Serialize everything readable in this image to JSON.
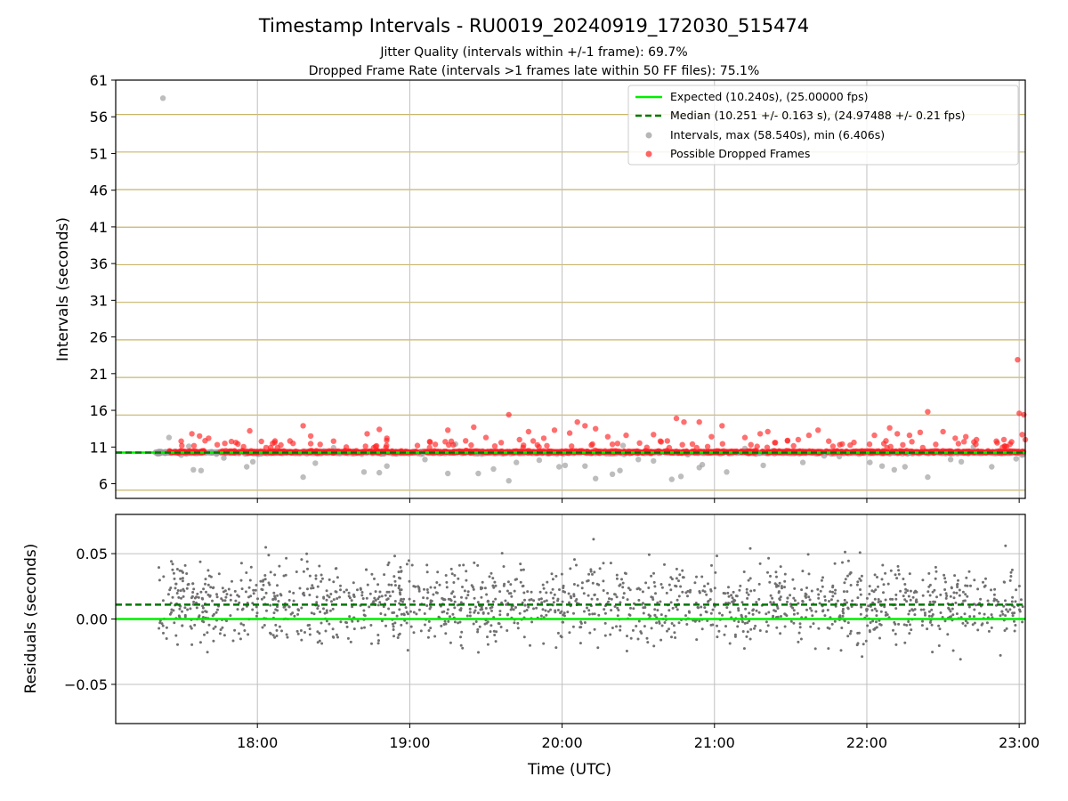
{
  "figure": {
    "title": "Timestamp Intervals - RU0019_20240919_172030_515474",
    "subtitle_1": "Jitter Quality (intervals within +/-1 frame): 69.7%",
    "subtitle_2": "Dropped Frame Rate (intervals >1 frames late within 50 FF files): 75.1%"
  },
  "colors": {
    "expected": "#00ee00",
    "median": "#007700",
    "intervals": "#999999",
    "dropped": "#ff2222",
    "residuals": "#707070",
    "frame_lines": "#c8b56a",
    "grid": "#c0c0c0"
  },
  "chart_data": [
    {
      "type": "scatter",
      "panel": "top",
      "ylabel": "Intervals (seconds)",
      "xlabel": "",
      "x_unit": "hours UTC",
      "xlim": [
        17.07,
        23.04
      ],
      "ylim": [
        4,
        61
      ],
      "y_ticks": [
        6,
        11,
        16,
        21,
        26,
        31,
        36,
        41,
        46,
        51,
        56,
        61
      ],
      "x_ticks": [
        18,
        19,
        20,
        21,
        22,
        23
      ],
      "x_tick_labels": [
        "18:00",
        "19:00",
        "20:00",
        "21:00",
        "22:00",
        "23:00"
      ],
      "grid": true,
      "frame_interval_lines": true,
      "legend_position": "top-right",
      "expected_interval": 10.24,
      "median_interval": 10.251,
      "legend": {
        "expected": "Expected (10.240s), (25.00000 fps)",
        "median": "Median (10.251 +/- 0.163 s), (24.97488 +/- 0.21 fps)",
        "intervals": "Intervals, max (58.540s), min (6.406s)",
        "dropped": "Possible Dropped Frames"
      },
      "series": [
        {
          "name": "Intervals, max (58.540s), min (6.406s)",
          "points": [
            [
              17.38,
              58.54
            ],
            [
              17.42,
              12.3
            ],
            [
              17.5,
              9.9
            ],
            [
              17.58,
              7.9
            ],
            [
              17.63,
              7.8
            ],
            [
              17.78,
              9.5
            ],
            [
              17.93,
              8.3
            ],
            [
              17.97,
              9.0
            ],
            [
              18.3,
              6.9
            ],
            [
              18.38,
              8.8
            ],
            [
              18.7,
              7.6
            ],
            [
              18.8,
              7.5
            ],
            [
              18.85,
              8.4
            ],
            [
              19.1,
              9.3
            ],
            [
              19.25,
              7.4
            ],
            [
              19.45,
              7.4
            ],
            [
              19.55,
              8.0
            ],
            [
              19.65,
              6.4
            ],
            [
              19.7,
              8.9
            ],
            [
              19.85,
              9.2
            ],
            [
              19.98,
              8.3
            ],
            [
              20.02,
              8.5
            ],
            [
              20.15,
              8.4
            ],
            [
              20.22,
              6.7
            ],
            [
              20.33,
              7.3
            ],
            [
              20.38,
              7.8
            ],
            [
              20.5,
              9.3
            ],
            [
              20.6,
              9.1
            ],
            [
              20.72,
              6.6
            ],
            [
              20.78,
              7.0
            ],
            [
              20.9,
              8.2
            ],
            [
              20.92,
              8.6
            ],
            [
              21.08,
              7.6
            ],
            [
              21.32,
              8.5
            ],
            [
              21.58,
              8.9
            ],
            [
              21.72,
              9.8
            ],
            [
              21.82,
              9.7
            ],
            [
              22.02,
              8.9
            ],
            [
              22.1,
              8.4
            ],
            [
              22.18,
              7.9
            ],
            [
              22.25,
              8.3
            ],
            [
              22.4,
              6.9
            ],
            [
              22.55,
              9.3
            ],
            [
              22.62,
              9.0
            ],
            [
              22.82,
              8.3
            ],
            [
              22.98,
              9.4
            ],
            [
              23.02,
              9.9
            ],
            [
              17.55,
              11.1
            ],
            [
              18.5,
              10.9
            ],
            [
              19.3,
              11.4
            ],
            [
              20.4,
              11.2
            ],
            [
              21.2,
              10.8
            ],
            [
              22.7,
              11.0
            ]
          ]
        },
        {
          "name": "Possible Dropped Frames",
          "points": [
            [
              17.5,
              11.8
            ],
            [
              17.57,
              12.8
            ],
            [
              17.62,
              12.5
            ],
            [
              17.68,
              12.2
            ],
            [
              17.95,
              13.2
            ],
            [
              18.1,
              11.5
            ],
            [
              18.3,
              13.9
            ],
            [
              18.35,
              12.5
            ],
            [
              18.5,
              11.8
            ],
            [
              18.72,
              12.8
            ],
            [
              18.8,
              13.4
            ],
            [
              18.85,
              12.2
            ],
            [
              19.05,
              11.2
            ],
            [
              19.25,
              13.3
            ],
            [
              19.42,
              13.7
            ],
            [
              19.5,
              12.3
            ],
            [
              19.6,
              11.6
            ],
            [
              19.65,
              15.4
            ],
            [
              19.72,
              12.0
            ],
            [
              19.78,
              13.1
            ],
            [
              19.88,
              12.2
            ],
            [
              19.95,
              13.3
            ],
            [
              20.05,
              12.9
            ],
            [
              20.1,
              14.4
            ],
            [
              20.15,
              13.9
            ],
            [
              20.22,
              13.5
            ],
            [
              20.3,
              12.4
            ],
            [
              20.42,
              12.6
            ],
            [
              20.6,
              12.7
            ],
            [
              20.65,
              11.7
            ],
            [
              20.75,
              14.9
            ],
            [
              20.8,
              14.4
            ],
            [
              20.9,
              14.4
            ],
            [
              20.98,
              12.4
            ],
            [
              21.05,
              13.9
            ],
            [
              21.2,
              12.3
            ],
            [
              21.3,
              12.8
            ],
            [
              21.35,
              13.1
            ],
            [
              21.4,
              11.6
            ],
            [
              21.48,
              11.9
            ],
            [
              21.55,
              12.0
            ],
            [
              21.62,
              12.6
            ],
            [
              21.68,
              13.3
            ],
            [
              21.75,
              11.8
            ],
            [
              22.05,
              12.6
            ],
            [
              22.15,
              13.6
            ],
            [
              22.2,
              12.8
            ],
            [
              22.28,
              12.6
            ],
            [
              22.35,
              13.0
            ],
            [
              22.4,
              15.8
            ],
            [
              22.5,
              13.1
            ],
            [
              22.58,
              12.2
            ],
            [
              22.65,
              12.4
            ],
            [
              22.72,
              12.0
            ],
            [
              22.85,
              11.8
            ],
            [
              22.9,
              12.0
            ],
            [
              22.95,
              11.7
            ],
            [
              22.99,
              22.9
            ],
            [
              23.0,
              15.6
            ],
            [
              23.03,
              15.4
            ],
            [
              23.02,
              12.7
            ],
            [
              23.04,
              12.0
            ]
          ]
        }
      ]
    },
    {
      "type": "scatter",
      "panel": "bottom",
      "ylabel": "Residuals (seconds)",
      "xlabel": "Time (UTC)",
      "x_unit": "hours UTC",
      "xlim": [
        17.07,
        23.04
      ],
      "ylim": [
        -0.08,
        0.08
      ],
      "y_ticks": [
        -0.05,
        0.0,
        0.05
      ],
      "y_tick_labels": [
        "−0.05",
        "0.00",
        "0.05"
      ],
      "x_ticks": [
        18,
        19,
        20,
        21,
        22,
        23
      ],
      "x_tick_labels": [
        "18:00",
        "19:00",
        "20:00",
        "21:00",
        "22:00",
        "23:00"
      ],
      "grid": true,
      "expected_residual": 0.0,
      "median_residual": 0.011,
      "residual_x_range": [
        17.35,
        23.03
      ]
    }
  ]
}
